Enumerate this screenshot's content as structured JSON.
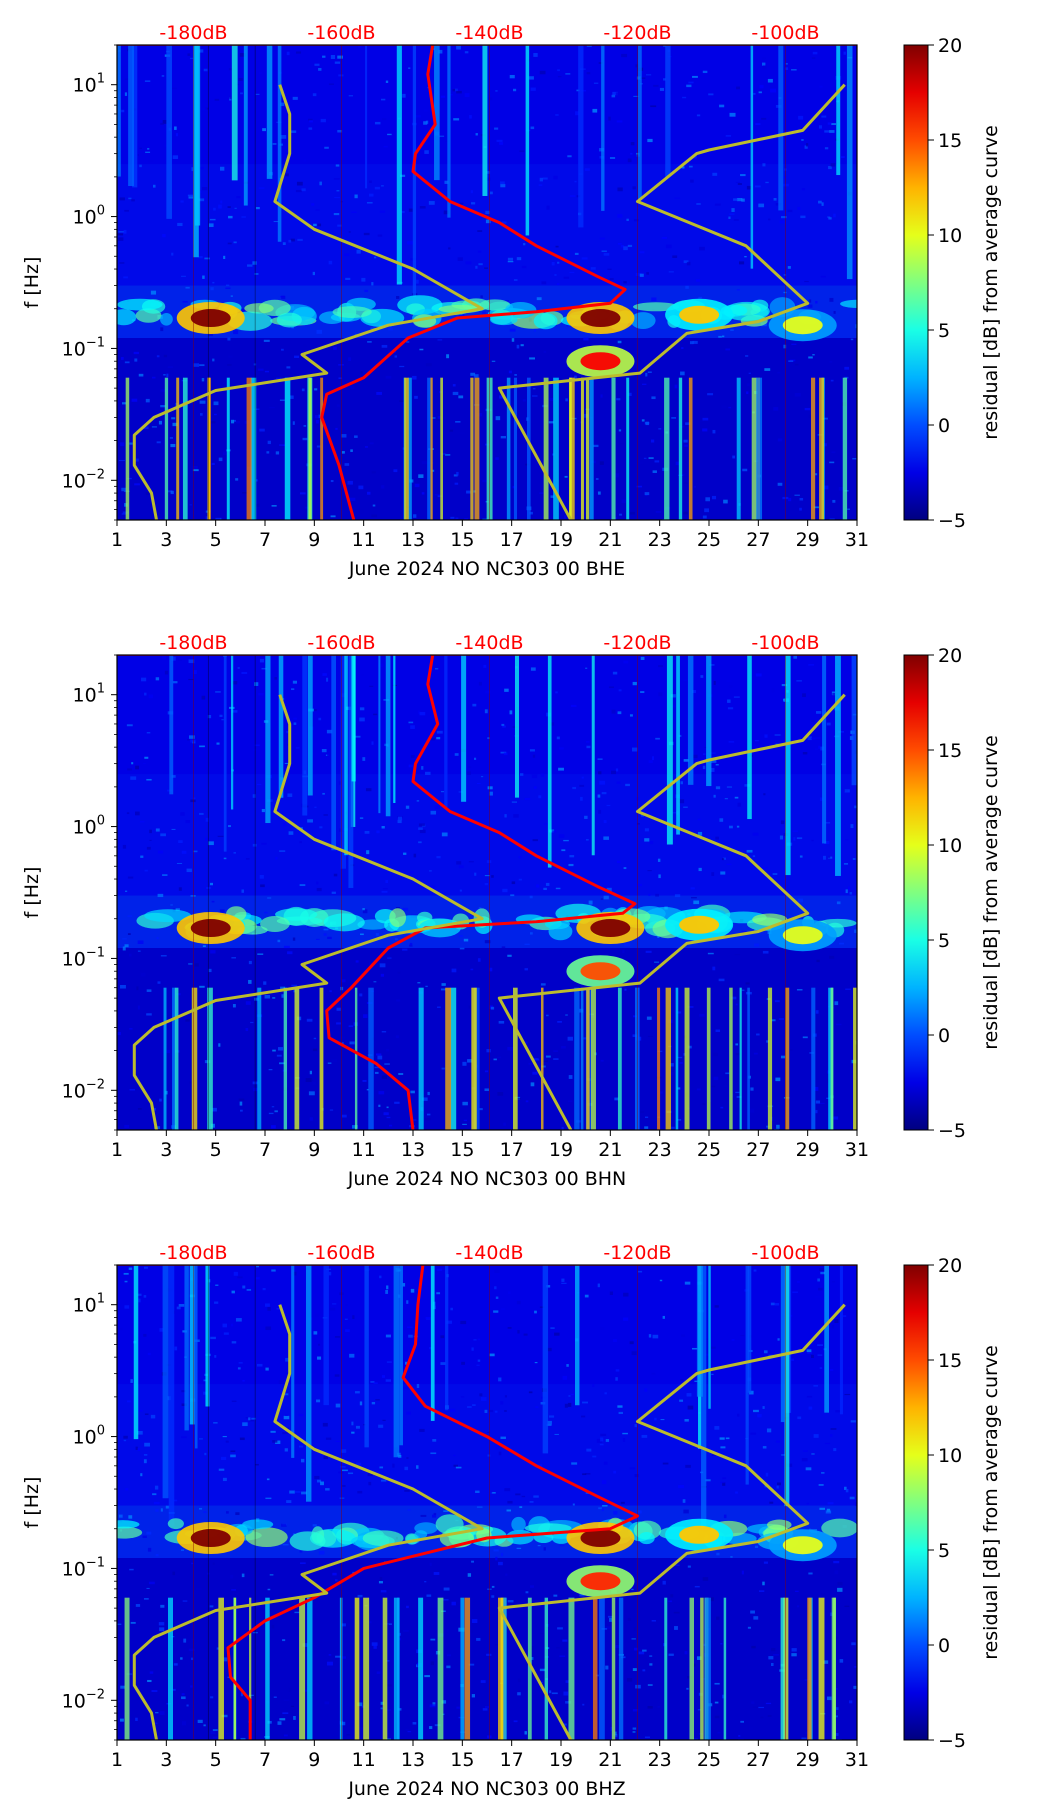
{
  "chart_data": [
    {
      "type": "heatmap",
      "title": "",
      "xlabel": "June 2024 NO NC303 00 BHE",
      "ylabel": "f [Hz]",
      "colorbar_label": "residual [dB] from average curve",
      "x_range": [
        1,
        31
      ],
      "x_ticks": [
        "1",
        "3",
        "5",
        "7",
        "9",
        "11",
        "13",
        "15",
        "17",
        "19",
        "21",
        "23",
        "25",
        "27",
        "29",
        "31"
      ],
      "y_range_hz": [
        0.005,
        20
      ],
      "y_scale": "log",
      "y_ticks": [
        "10^1",
        "10^0",
        "10^-1",
        "10^-2"
      ],
      "colorbar_range": [
        -5,
        20
      ],
      "colorbar_ticks": [
        "20",
        "15",
        "10",
        "5",
        "0",
        "−5"
      ],
      "colormap": "jet",
      "top_axis_db_labels": [
        "-180dB",
        "-160dB",
        "-140dB",
        "-120dB",
        "-100dB"
      ],
      "top_axis_db_positions_day": [
        4.1,
        10.1,
        16.1,
        22.1,
        28.1
      ],
      "hot_spots": [
        {
          "day": 4.8,
          "freq_hz": 0.17,
          "residual_db": 20
        },
        {
          "day": 20.6,
          "freq_hz": 0.17,
          "residual_db": 20
        },
        {
          "day": 20.6,
          "freq_hz": 0.08,
          "residual_db": 17
        },
        {
          "day": 24.6,
          "freq_hz": 0.18,
          "residual_db": 12
        },
        {
          "day": 28.8,
          "freq_hz": 0.15,
          "residual_db": 10
        }
      ],
      "series": [
        {
          "name": "median PSD curve (red)",
          "color": "#ff0000",
          "points": [
            [
              13.8,
              20
            ],
            [
              13.6,
              12
            ],
            [
              13.9,
              5
            ],
            [
              13.1,
              3
            ],
            [
              13,
              2.2
            ],
            [
              14.5,
              1.3
            ],
            [
              16.5,
              0.9
            ],
            [
              18,
              0.6
            ],
            [
              20.5,
              0.35
            ],
            [
              21.6,
              0.28
            ],
            [
              21,
              0.22
            ],
            [
              18,
              0.19
            ],
            [
              14.8,
              0.17
            ],
            [
              12.8,
              0.12
            ],
            [
              11,
              0.06
            ],
            [
              9.5,
              0.045
            ],
            [
              9.3,
              0.03
            ],
            [
              10,
              0.013
            ],
            [
              10.6,
              0.005
            ]
          ]
        },
        {
          "name": "noise model lines (olive)",
          "color": "#bcbc2d",
          "points": [
            [
              7.6,
              10
            ],
            [
              8,
              6
            ],
            [
              8,
              3
            ],
            [
              7.4,
              1.3
            ],
            [
              9,
              0.8
            ],
            [
              13,
              0.4
            ],
            [
              15.8,
              0.2
            ],
            [
              12,
              0.15
            ],
            [
              8.5,
              0.09
            ],
            [
              9.5,
              0.065
            ],
            [
              5,
              0.048
            ],
            [
              2.5,
              0.03
            ],
            [
              1.7,
              0.022
            ],
            [
              1.7,
              0.013
            ],
            [
              2.4,
              0.008
            ],
            [
              2.6,
              0.005
            ]
          ]
        },
        {
          "name": "noise model lines right (olive)",
          "color": "#bcbc2d",
          "points": [
            [
              30.5,
              10
            ],
            [
              28.8,
              4.5
            ],
            [
              25,
              3.2
            ],
            [
              24.5,
              3
            ],
            [
              22.1,
              1.3
            ],
            [
              26.5,
              0.6
            ],
            [
              29,
              0.22
            ],
            [
              27,
              0.16
            ],
            [
              24.1,
              0.13
            ],
            [
              22.2,
              0.065
            ],
            [
              16.5,
              0.05
            ],
            [
              19.4,
              0.005
            ]
          ]
        }
      ]
    },
    {
      "type": "heatmap",
      "title": "",
      "xlabel": "June 2024 NO NC303 00 BHN",
      "ylabel": "f [Hz]",
      "colorbar_label": "residual [dB] from average curve",
      "x_range": [
        1,
        31
      ],
      "x_ticks": [
        "1",
        "3",
        "5",
        "7",
        "9",
        "11",
        "13",
        "15",
        "17",
        "19",
        "21",
        "23",
        "25",
        "27",
        "29",
        "31"
      ],
      "y_range_hz": [
        0.005,
        20
      ],
      "y_scale": "log",
      "y_ticks": [
        "10^1",
        "10^0",
        "10^-1",
        "10^-2"
      ],
      "colorbar_range": [
        -5,
        20
      ],
      "colorbar_ticks": [
        "20",
        "15",
        "10",
        "5",
        "0",
        "−5"
      ],
      "colormap": "jet",
      "top_axis_db_labels": [
        "-180dB",
        "-160dB",
        "-140dB",
        "-120dB",
        "-100dB"
      ],
      "top_axis_db_positions_day": [
        4.1,
        10.1,
        16.1,
        22.1,
        28.1
      ],
      "hot_spots": [
        {
          "day": 4.8,
          "freq_hz": 0.17,
          "residual_db": 20
        },
        {
          "day": 21,
          "freq_hz": 0.17,
          "residual_db": 20
        },
        {
          "day": 20.6,
          "freq_hz": 0.08,
          "residual_db": 15
        },
        {
          "day": 24.6,
          "freq_hz": 0.18,
          "residual_db": 12
        },
        {
          "day": 28.8,
          "freq_hz": 0.15,
          "residual_db": 10
        }
      ],
      "series": [
        {
          "name": "median PSD curve (red)",
          "color": "#ff0000",
          "points": [
            [
              13.8,
              20
            ],
            [
              13.6,
              12
            ],
            [
              14,
              6
            ],
            [
              13.1,
              3
            ],
            [
              13,
              2.2
            ],
            [
              14.5,
              1.3
            ],
            [
              16.5,
              0.9
            ],
            [
              18,
              0.6
            ],
            [
              20.5,
              0.35
            ],
            [
              22,
              0.26
            ],
            [
              21.5,
              0.22
            ],
            [
              18,
              0.19
            ],
            [
              13.5,
              0.17
            ],
            [
              12,
              0.12
            ],
            [
              10.5,
              0.06
            ],
            [
              9.5,
              0.04
            ],
            [
              9.6,
              0.025
            ],
            [
              11.5,
              0.016
            ],
            [
              12.8,
              0.01
            ],
            [
              13,
              0.005
            ]
          ]
        },
        {
          "name": "noise model lines (olive)",
          "color": "#bcbc2d",
          "points": [
            [
              7.6,
              10
            ],
            [
              8,
              6
            ],
            [
              8,
              3
            ],
            [
              7.4,
              1.3
            ],
            [
              9,
              0.8
            ],
            [
              13,
              0.4
            ],
            [
              15.8,
              0.2
            ],
            [
              12,
              0.15
            ],
            [
              8.5,
              0.09
            ],
            [
              9.5,
              0.065
            ],
            [
              5,
              0.048
            ],
            [
              2.5,
              0.03
            ],
            [
              1.7,
              0.022
            ],
            [
              1.7,
              0.013
            ],
            [
              2.4,
              0.008
            ],
            [
              2.6,
              0.005
            ]
          ]
        },
        {
          "name": "noise model lines right (olive)",
          "color": "#bcbc2d",
          "points": [
            [
              30.5,
              10
            ],
            [
              28.8,
              4.5
            ],
            [
              25,
              3.2
            ],
            [
              24.5,
              3
            ],
            [
              22.1,
              1.3
            ],
            [
              26.5,
              0.6
            ],
            [
              29,
              0.22
            ],
            [
              27,
              0.16
            ],
            [
              24.1,
              0.13
            ],
            [
              22.2,
              0.065
            ],
            [
              16.5,
              0.05
            ],
            [
              19.4,
              0.005
            ]
          ]
        }
      ]
    },
    {
      "type": "heatmap",
      "title": "",
      "xlabel": "June 2024 NO NC303 00 BHZ",
      "ylabel": "f [Hz]",
      "colorbar_label": "residual [dB] from average curve",
      "x_range": [
        1,
        31
      ],
      "x_ticks": [
        "1",
        "3",
        "5",
        "7",
        "9",
        "11",
        "13",
        "15",
        "17",
        "19",
        "21",
        "23",
        "25",
        "27",
        "29",
        "31"
      ],
      "y_range_hz": [
        0.005,
        20
      ],
      "y_scale": "log",
      "y_ticks": [
        "10^1",
        "10^0",
        "10^-1",
        "10^-2"
      ],
      "colorbar_range": [
        -5,
        20
      ],
      "colorbar_ticks": [
        "20",
        "15",
        "10",
        "5",
        "0",
        "−5"
      ],
      "colormap": "jet",
      "top_axis_db_labels": [
        "-180dB",
        "-160dB",
        "-140dB",
        "-120dB",
        "-100dB"
      ],
      "top_axis_db_positions_day": [
        4.1,
        10.1,
        16.1,
        22.1,
        28.1
      ],
      "hot_spots": [
        {
          "day": 4.8,
          "freq_hz": 0.17,
          "residual_db": 20
        },
        {
          "day": 20.6,
          "freq_hz": 0.17,
          "residual_db": 20
        },
        {
          "day": 20.6,
          "freq_hz": 0.08,
          "residual_db": 16
        },
        {
          "day": 24.6,
          "freq_hz": 0.18,
          "residual_db": 12
        },
        {
          "day": 28.8,
          "freq_hz": 0.15,
          "residual_db": 10
        }
      ],
      "series": [
        {
          "name": "median PSD curve (red)",
          "color": "#ff0000",
          "points": [
            [
              13.4,
              20
            ],
            [
              13.2,
              10
            ],
            [
              13.1,
              5
            ],
            [
              12.6,
              2.8
            ],
            [
              13.5,
              1.7
            ],
            [
              16,
              1
            ],
            [
              18,
              0.6
            ],
            [
              20.5,
              0.35
            ],
            [
              22.1,
              0.25
            ],
            [
              21,
              0.2
            ],
            [
              16,
              0.17
            ],
            [
              11,
              0.1
            ],
            [
              9,
              0.06
            ],
            [
              7,
              0.04
            ],
            [
              5.5,
              0.025
            ],
            [
              5.6,
              0.015
            ],
            [
              6.4,
              0.01
            ],
            [
              6.4,
              0.005
            ]
          ]
        },
        {
          "name": "noise model lines (olive)",
          "color": "#bcbc2d",
          "points": [
            [
              7.6,
              10
            ],
            [
              8,
              6
            ],
            [
              8,
              3
            ],
            [
              7.4,
              1.3
            ],
            [
              9,
              0.8
            ],
            [
              13,
              0.4
            ],
            [
              15.8,
              0.2
            ],
            [
              12,
              0.15
            ],
            [
              8.5,
              0.09
            ],
            [
              9.5,
              0.065
            ],
            [
              5,
              0.048
            ],
            [
              2.5,
              0.03
            ],
            [
              1.7,
              0.022
            ],
            [
              1.7,
              0.013
            ],
            [
              2.4,
              0.008
            ],
            [
              2.6,
              0.005
            ]
          ]
        },
        {
          "name": "noise model lines right (olive)",
          "color": "#bcbc2d",
          "points": [
            [
              30.5,
              10
            ],
            [
              28.8,
              4.5
            ],
            [
              25,
              3.2
            ],
            [
              24.5,
              3
            ],
            [
              22.1,
              1.3
            ],
            [
              26.5,
              0.6
            ],
            [
              29,
              0.22
            ],
            [
              27,
              0.16
            ],
            [
              24.1,
              0.13
            ],
            [
              22.2,
              0.065
            ],
            [
              16.5,
              0.05
            ],
            [
              19.4,
              0.005
            ]
          ]
        }
      ]
    }
  ]
}
